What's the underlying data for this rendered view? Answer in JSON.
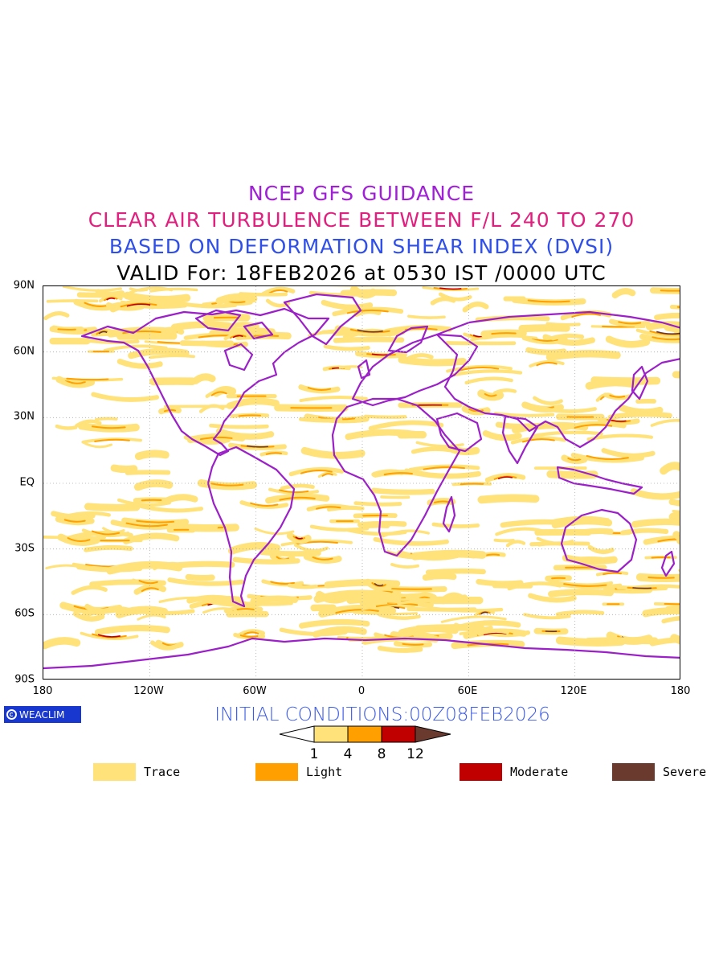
{
  "titles": {
    "line1": "NCEP GFS GUIDANCE",
    "line2": "CLEAR AIR TURBULENCE BETWEEN F/L 240 TO 270",
    "line3": "BASED ON DEFORMATION SHEAR INDEX (DVSI)",
    "line4": "VALID For: 18FEB2026 at 0530 IST /0000 UTC"
  },
  "colors": {
    "title1": "#a020d8",
    "title2": "#e0207f",
    "title3": "#2f4fe8",
    "coastline": "#9b20c8",
    "trace": "#ffe27a",
    "light": "#ff9f00",
    "moderate": "#c00000",
    "severe": "#6b3a2f"
  },
  "map": {
    "lat_labels": [
      "90N",
      "60N",
      "30N",
      "EQ",
      "30S",
      "60S",
      "90S"
    ],
    "lon_labels": [
      "180",
      "120W",
      "60W",
      "0",
      "60E",
      "120E",
      "180"
    ],
    "lat_range": [
      -90,
      90
    ],
    "lon_range": [
      -180,
      180
    ],
    "grid": "dotted every 30 degrees"
  },
  "badge": {
    "text": "WEACLIM"
  },
  "initial_conditions": "INITIAL CONDITIONS:00Z08FEB2026",
  "colorbar": {
    "ticks": [
      "1",
      "4",
      "8",
      "12"
    ],
    "levels": [
      1,
      4,
      8,
      12
    ]
  },
  "legend": [
    {
      "label": "Trace",
      "color": "#ffe27a"
    },
    {
      "label": "Light",
      "color": "#ff9f00"
    },
    {
      "label": "Moderate",
      "color": "#c00000"
    },
    {
      "label": "Severe",
      "color": "#6b3a2f"
    }
  ]
}
